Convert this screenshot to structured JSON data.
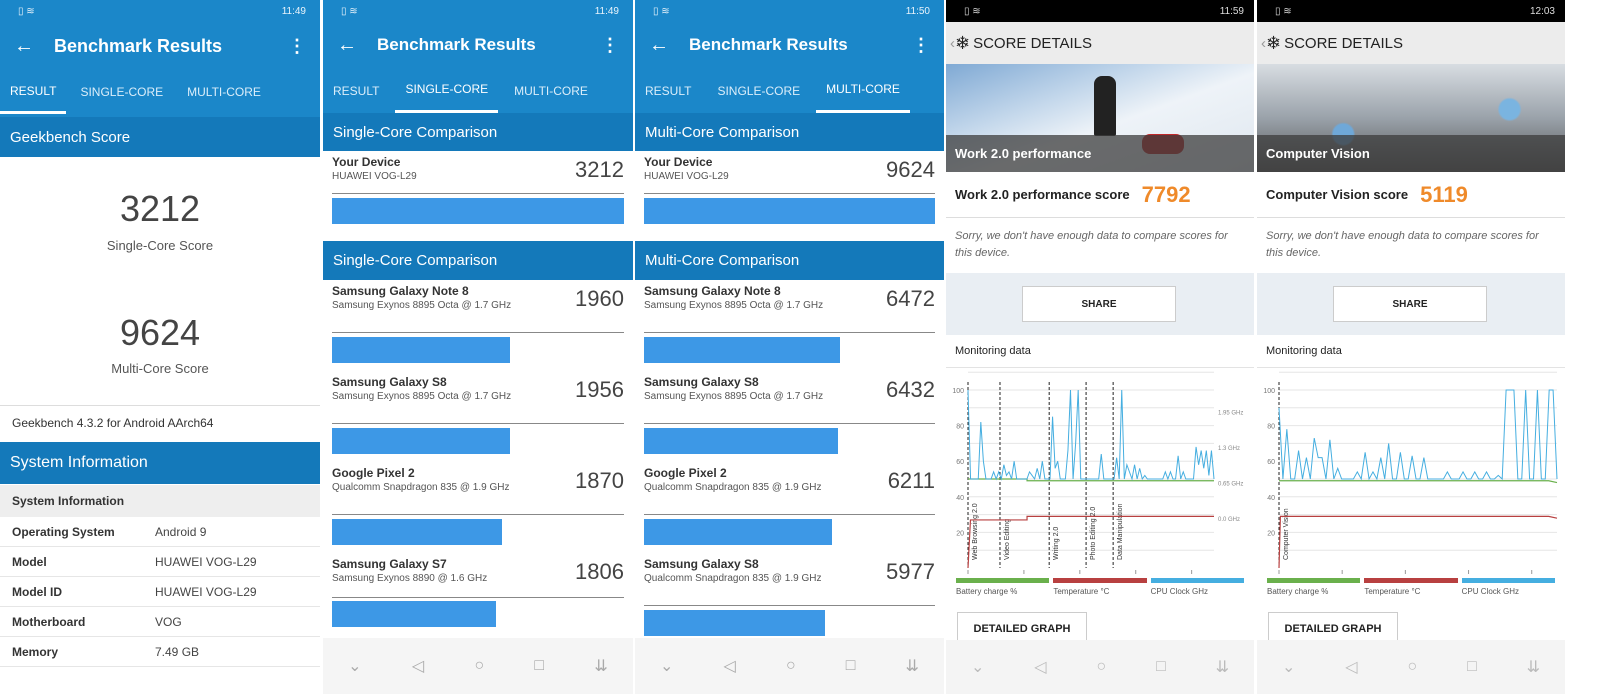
{
  "geekbench": {
    "title": "Benchmark Results",
    "tabs": [
      "RESULT",
      "SINGLE-CORE",
      "MULTI-CORE"
    ],
    "status_times": [
      "11:49",
      "11:49",
      "11:50"
    ],
    "result": {
      "section_score": "Geekbench Score",
      "single_score": "3212",
      "single_label": "Single-Core Score",
      "multi_score": "9624",
      "multi_label": "Multi-Core Score",
      "version": "Geekbench 4.3.2 for Android AArch64",
      "section_system": "System Information",
      "subheader": "System Information",
      "rows": [
        {
          "k": "Operating System",
          "v": "Android 9"
        },
        {
          "k": "Model",
          "v": "HUAWEI VOG-L29"
        },
        {
          "k": "Model ID",
          "v": "HUAWEI VOG-L29"
        },
        {
          "k": "Motherboard",
          "v": "VOG"
        },
        {
          "k": "Memory",
          "v": "7.49 GB"
        }
      ]
    },
    "single": {
      "header1": "Single-Core Comparison",
      "header2": "Single-Core Comparison",
      "device": {
        "name": "Your Device",
        "sub": "HUAWEI VOG-L29",
        "score": 3212
      },
      "items": [
        {
          "name": "Samsung Galaxy Note 8",
          "sub": "Samsung Exynos 8895 Octa @ 1.7 GHz",
          "score": 1960
        },
        {
          "name": "Samsung Galaxy S8",
          "sub": "Samsung Exynos 8895 Octa @ 1.7 GHz",
          "score": 1956
        },
        {
          "name": "Google Pixel 2",
          "sub": "Qualcomm Snapdragon 835 @ 1.9 GHz",
          "score": 1870
        },
        {
          "name": "Samsung Galaxy S7",
          "sub": "Samsung Exynos 8890 @ 1.6 GHz",
          "score": 1806
        }
      ]
    },
    "multi": {
      "header1": "Multi-Core Comparison",
      "header2": "Multi-Core Comparison",
      "device": {
        "name": "Your Device",
        "sub": "HUAWEI VOG-L29",
        "score": 9624
      },
      "items": [
        {
          "name": "Samsung Galaxy Note 8",
          "sub": "Samsung Exynos 8895 Octa @ 1.7 GHz",
          "score": 6472
        },
        {
          "name": "Samsung Galaxy S8",
          "sub": "Samsung Exynos 8895 Octa @ 1.7 GHz",
          "score": 6432
        },
        {
          "name": "Google Pixel 2",
          "sub": "Qualcomm Snapdragon 835 @ 1.9 GHz",
          "score": 6211
        },
        {
          "name": "Samsung Galaxy S8",
          "sub": "Qualcomm Snapdragon 835 @ 1.9 GHz",
          "score": 5977
        }
      ]
    }
  },
  "pcmark": [
    {
      "time": "11:59",
      "header": "SCORE DETAILS",
      "hero_title": "Work 2.0 performance",
      "score_label": "Work 2.0 performance score",
      "score": "7792",
      "sorry": "Sorry, we don't have enough data to compare scores for this device.",
      "share": "SHARE",
      "monitoring": "Monitoring data",
      "detailed": "DETAILED GRAPH",
      "accent": "#ef8a2a"
    },
    {
      "time": "12:03",
      "header": "SCORE DETAILS",
      "hero_title": "Computer Vision",
      "score_label": "Computer Vision score",
      "score": "5119",
      "sorry": "Sorry, we don't have enough data to compare scores for this device.",
      "share": "SHARE",
      "monitoring": "Monitoring data",
      "detailed": "DETAILED GRAPH",
      "accent": "#ef8a2a"
    }
  ],
  "chart_data": [
    {
      "type": "line",
      "title": "Monitoring data",
      "ylim": [
        0,
        100
      ],
      "yticks": [
        "20",
        "40",
        "60",
        "80",
        "100"
      ],
      "right_ticks": [
        "1.95 GHz",
        "1.3 GHz",
        "0.65 GHz",
        "0.0 GHz"
      ],
      "xticks": [
        "00:30",
        "01:40",
        "02:20",
        "03:30",
        "03:40"
      ],
      "legend": [
        "Battery charge %",
        "Temperature °C",
        "CPU Clock GHz"
      ],
      "colors": [
        "#6ab04c",
        "#b84040",
        "#45aee0"
      ],
      "markers": [
        "Web Browsing 2.0",
        "Video Editing",
        "Writing 2.0",
        "Photo Editing 2.0",
        "Data Manipulation"
      ],
      "marker_pos": [
        0,
        0.13,
        0.33,
        0.48,
        0.59
      ],
      "cpu": [
        100,
        50,
        50,
        50,
        50,
        82,
        60,
        50,
        50,
        50,
        54,
        50,
        54,
        50,
        58,
        52,
        54,
        50,
        60,
        50,
        50,
        50,
        50,
        50,
        54,
        52,
        50,
        56,
        50,
        60,
        50,
        50,
        50,
        85,
        56,
        60,
        50,
        50,
        50,
        66,
        100,
        50,
        70,
        100,
        50,
        50,
        50,
        50,
        50,
        50,
        50,
        50,
        64,
        50,
        50,
        50,
        50,
        50,
        62,
        50,
        100,
        50,
        58,
        54,
        50,
        58,
        50,
        56,
        50,
        52,
        50,
        50,
        50,
        50,
        50,
        50,
        50,
        54,
        50,
        54,
        50,
        50,
        63,
        50,
        54,
        50,
        50,
        50,
        50,
        68,
        58,
        66,
        56,
        66,
        52,
        66,
        50
      ],
      "battery": [
        [
          0,
          50
        ],
        [
          0.24,
          50
        ],
        [
          0.24,
          49
        ],
        [
          1,
          49
        ]
      ],
      "temperature": [
        [
          0,
          0
        ],
        [
          0.01,
          27
        ],
        [
          0.24,
          27
        ],
        [
          0.24,
          29
        ],
        [
          1,
          29
        ]
      ]
    },
    {
      "type": "line",
      "title": "Monitoring data",
      "ylim": [
        0,
        100
      ],
      "yticks": [
        "20",
        "40",
        "60",
        "80",
        "100"
      ],
      "right_ticks": [],
      "xticks": [
        "00:30",
        "00:40",
        "01:20",
        "02:00",
        "02:40"
      ],
      "legend": [
        "Battery charge %",
        "Temperature °C",
        "CPU Clock GHz"
      ],
      "colors": [
        "#6ab04c",
        "#b84040",
        "#45aee0"
      ],
      "markers": [
        "Computer Vision"
      ],
      "marker_pos": [
        0
      ],
      "cpu": [
        90,
        50,
        78,
        50,
        50,
        66,
        50,
        62,
        50,
        73,
        62,
        62,
        50,
        72,
        50,
        56,
        50,
        50,
        50,
        50,
        54,
        50,
        65,
        50,
        54,
        50,
        62,
        50,
        70,
        50,
        50,
        65,
        50,
        50,
        63,
        50,
        50,
        62,
        50,
        50,
        50,
        50,
        50,
        54,
        50,
        50,
        50,
        54,
        50,
        50,
        54,
        50,
        50,
        54,
        50,
        50,
        52,
        50,
        100,
        100,
        100,
        50,
        50,
        100,
        50,
        50,
        100,
        50,
        50,
        100,
        100,
        50
      ],
      "battery": [
        [
          0,
          49
        ],
        [
          0.97,
          49
        ],
        [
          1,
          48
        ]
      ],
      "temperature": [
        [
          0,
          0
        ],
        [
          0.005,
          29
        ],
        [
          0.97,
          29
        ],
        [
          1,
          28
        ]
      ]
    }
  ]
}
